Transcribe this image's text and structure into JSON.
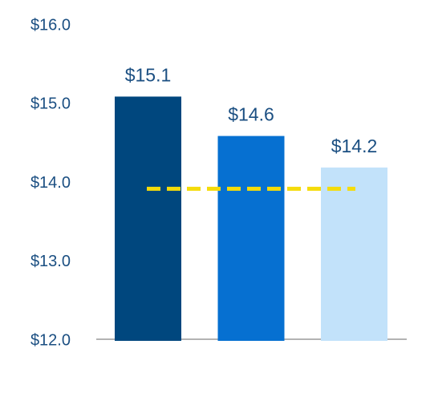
{
  "chart_data": {
    "type": "bar",
    "categories": [
      null,
      null,
      null
    ],
    "values": [
      15.1,
      14.6,
      14.2
    ],
    "value_labels": [
      "$15.1",
      "$14.6",
      "$14.2"
    ],
    "colors": [
      "#00477e",
      "#0670d1",
      "#c2e2fa"
    ],
    "ylim": [
      12,
      16
    ],
    "yticks": [
      {
        "value": 12,
        "label": "$12.0"
      },
      {
        "value": 13,
        "label": "$13.0"
      },
      {
        "value": 14,
        "label": "$14.0"
      },
      {
        "value": 15,
        "label": "$15.0"
      },
      {
        "value": 16,
        "label": "$16.0"
      }
    ],
    "grid": false,
    "reference_line": {
      "value": 13.93,
      "color": "#f5dc0a"
    }
  }
}
